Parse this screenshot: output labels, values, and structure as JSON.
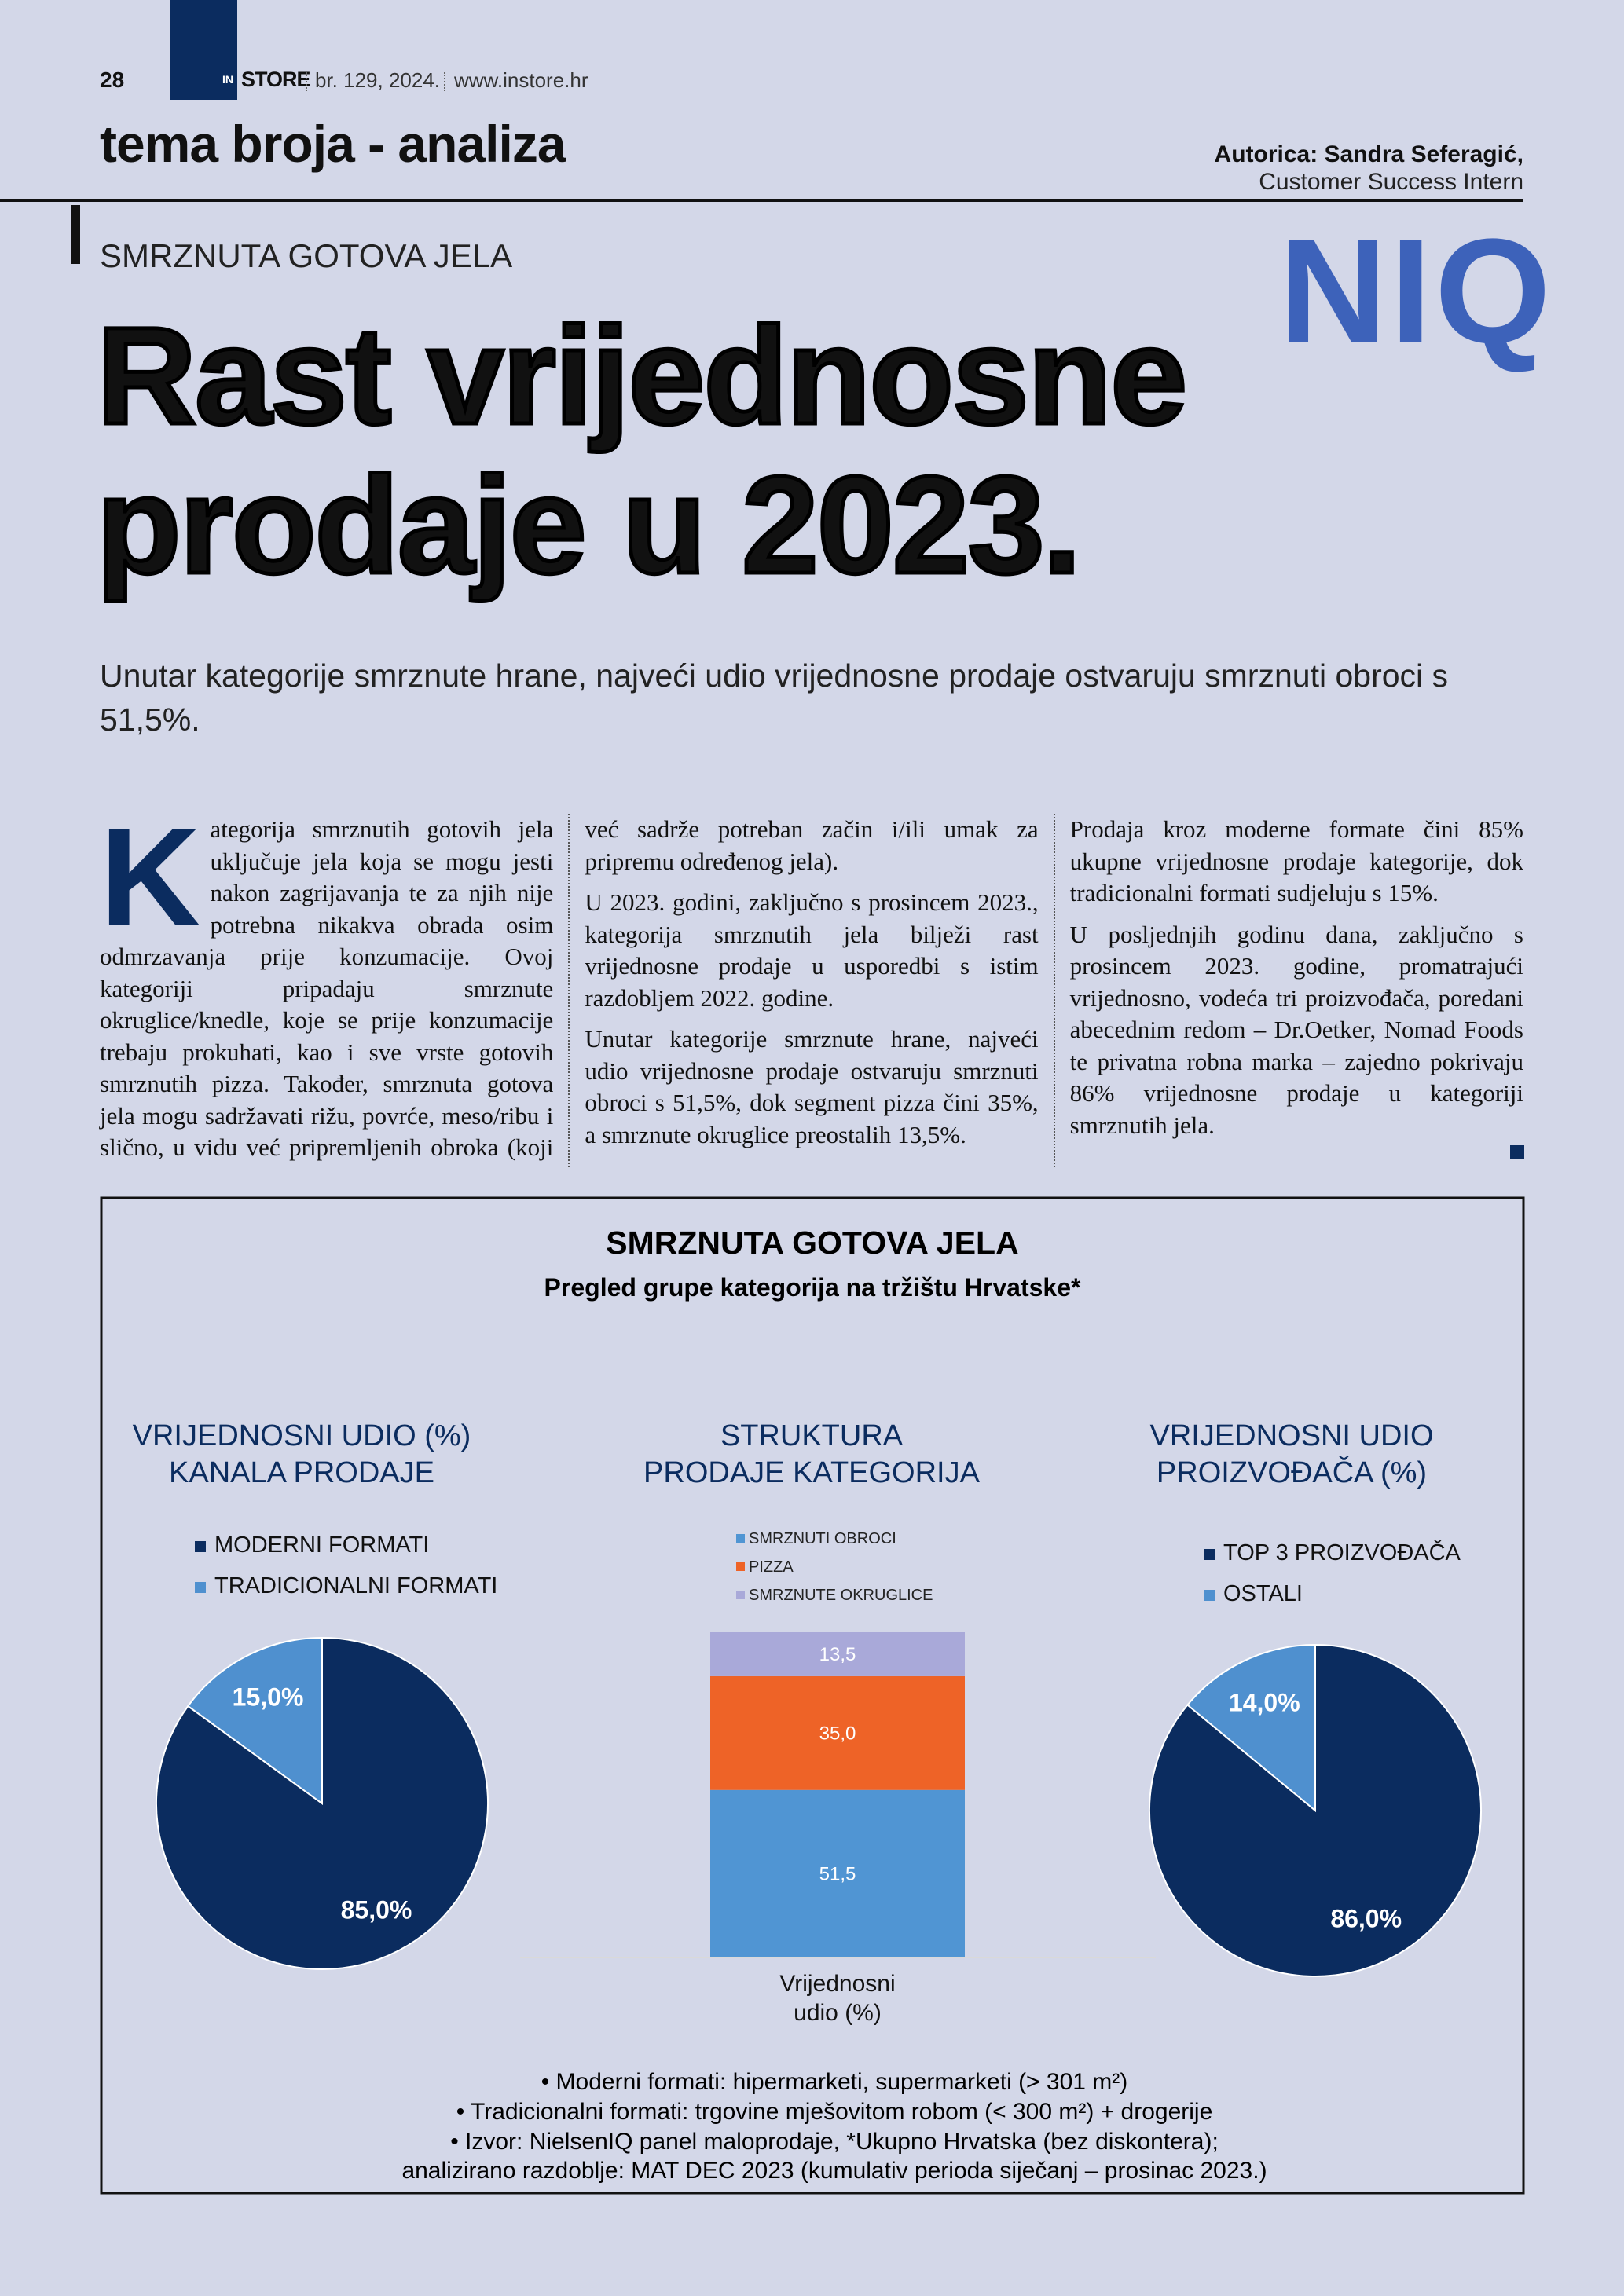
{
  "header": {
    "page": "28",
    "brand_in": "IN",
    "brand": "STORE",
    "issue": "br. 129, 2024.",
    "site": "www.instore.hr",
    "section": "tema broja - analiza",
    "author": "Autorica: Sandra Seferagić,",
    "author_role": "Customer Success Intern",
    "logo": "NIQ"
  },
  "article": {
    "kicker": "SMRZNUTA GOTOVA JELA",
    "title_lines": [
      "Rast vrijednosne",
      "prodaje u 2023."
    ],
    "lead": "Unutar kategorije smrznute hrane, najveći udio vrijednosne prodaje ostvaruju smrznuti obroci s 51,5%.",
    "dropcap": "K",
    "paragraphs": [
      "ategorija smrznutih gotovih jela uključuje jela koja se mogu jesti nakon zagrijavanja te za njih nije potrebna nikakva obrada osim odmrzavanja prije konzumacije. Ovoj kategoriji pripadaju smrznute okruglice/knedle, koje se prije konzumacije trebaju prokuhati, kao i sve vrste gotovih smrznutih pizza. Također, smrznuta gotova jela mogu sadržavati rižu, povrće, meso/ribu i slično, u vidu već pripremljenih obroka (koji već sadrže potreban začin i/ili umak za pripremu određenog jela).",
      "U 2023. godini, zaključno s prosincem 2023., kategorija smrznutih jela bilježi rast vrijednosne prodaje u usporedbi s istim razdobljem 2022. godine.",
      "Unutar kategorije smrznute hrane, najveći udio vrijednosne prodaje ostvaruju smrznuti obroci s 51,5%, dok segment pizza čini 35%, a smrznute okruglice preostalih 13,5%.",
      "Prodaja kroz moderne formate čini 85% ukupne vrijednosne prodaje kategorije, dok tradicionalni formati sudjeluju s 15%.",
      "U posljednjih godinu dana, zaključno s prosincem 2023. godine, promatrajući vrijednosno, vodeća tri proizvođača, poredani abecednim redom – Dr.Oetker, Nomad Foods te privatna robna marka – zajedno pokrivaju 86% vrijednosne prodaje u kategoriji smrznutih jela."
    ]
  },
  "figure": {
    "title": "SMRZNUTA GOTOVA JELA",
    "subtitle": "Pregled grupe kategorija na tržištu Hrvatske*",
    "notes": [
      "•   Moderni formati: hipermarketi, supermarketi (> 301 m²)",
      "•   Tradicionalni formati: trgovine mješovitom robom (< 300 m²) + drogerije",
      "•   Izvor: NielsenIQ panel maloprodaje, *Ukupno Hrvatska  (bez diskontera);",
      "analizirano razdoblje: MAT DEC 2023 (kumulativ perioda siječanj – prosinac 2023.)"
    ]
  },
  "chart_data": [
    {
      "type": "pie",
      "title": [
        "VRIJEDNOSNI UDIO (%)",
        "KANALA PRODAJE"
      ],
      "categories": [
        "MODERNI FORMATI",
        "TRADICIONALNI FORMATI"
      ],
      "values": [
        85,
        15
      ],
      "value_labels": [
        "85,0%",
        "15,0%"
      ],
      "colors": [
        "#0b2c5f",
        "#4f90cf"
      ]
    },
    {
      "type": "bar",
      "stacked": true,
      "title": [
        "STRUKTURA",
        "PRODAJE KATEGORIJA"
      ],
      "categories": [
        [
          "Vrijednosni",
          "udio (%)"
        ]
      ],
      "series": [
        {
          "name": "SMRZNUTI OBROCI",
          "color": "#5095d3",
          "values": [
            51.5
          ],
          "value_labels": [
            "51,5"
          ]
        },
        {
          "name": "PIZZA",
          "color": "#ee6327",
          "values": [
            35
          ],
          "value_labels": [
            "35,0"
          ]
        },
        {
          "name": "SMRZNUTE OKRUGLICE",
          "color": "#a9a9d9",
          "values": [
            13.5
          ],
          "value_labels": [
            "13,5"
          ]
        }
      ]
    },
    {
      "type": "pie",
      "title": [
        "VRIJEDNOSNI UDIO",
        "PROIZVOĐAČA (%)"
      ],
      "categories": [
        "TOP 3 PROIZVOĐAČA",
        "OSTALI"
      ],
      "values": [
        86,
        14
      ],
      "value_labels": [
        "86,0%",
        "14,0%"
      ],
      "colors": [
        "#0b2c5f",
        "#4f90cf"
      ]
    }
  ]
}
